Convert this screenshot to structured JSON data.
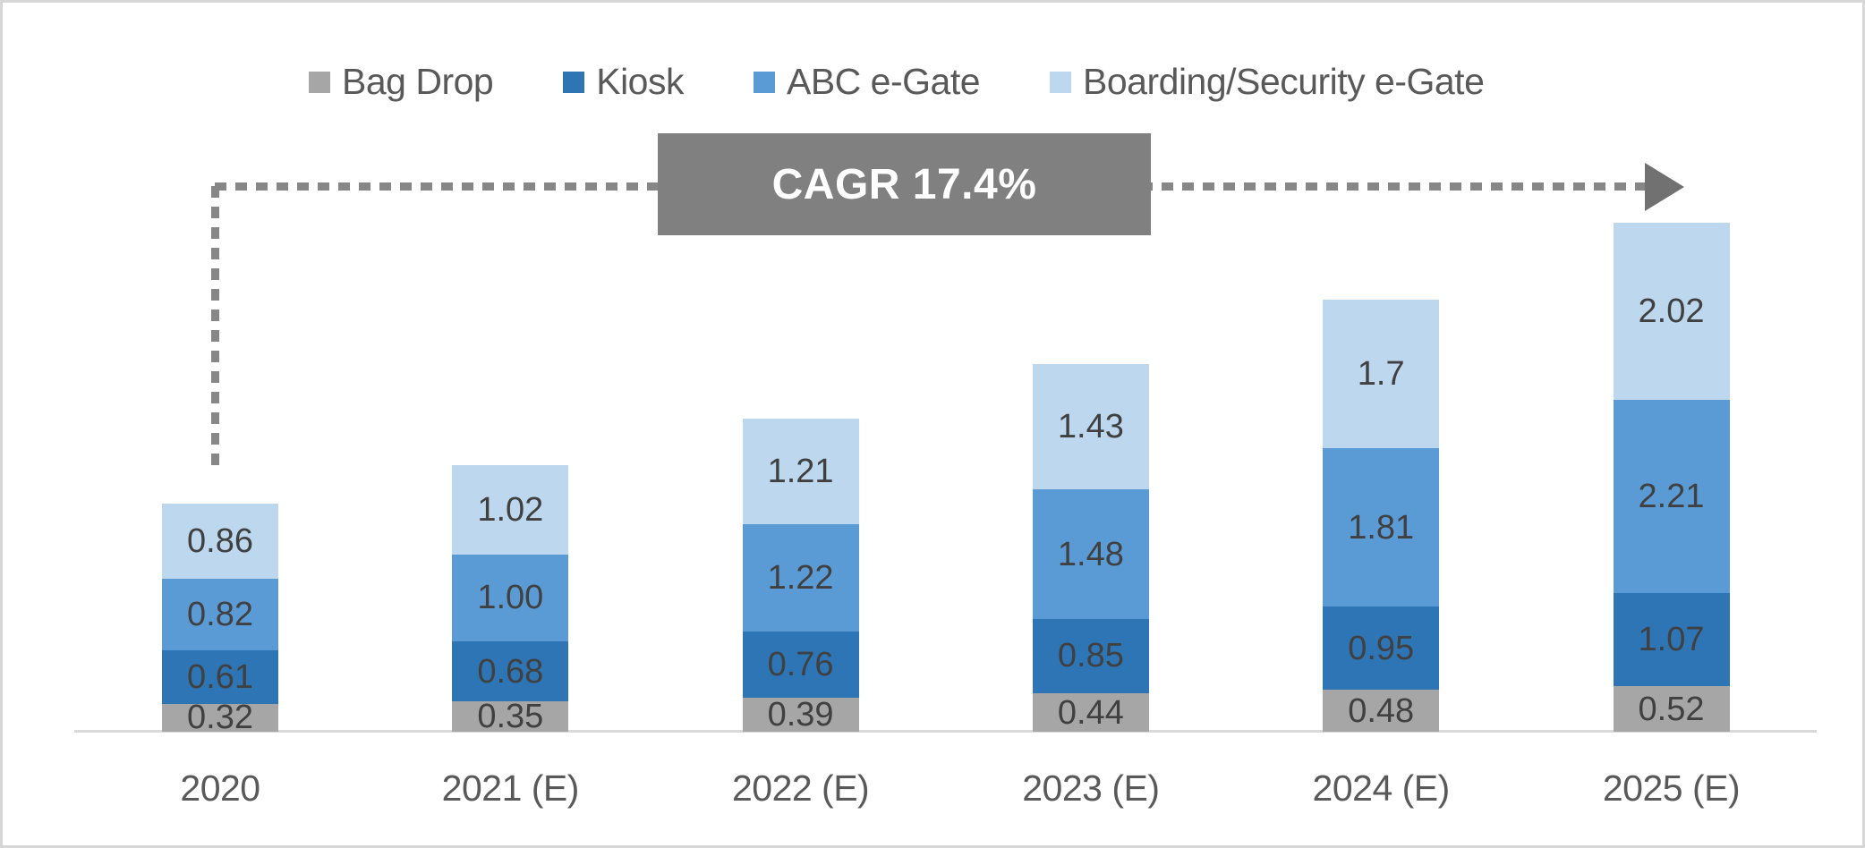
{
  "frame": {
    "border_color": "#d6d6d6",
    "background_color": "#ffffff"
  },
  "legend": {
    "items": [
      {
        "label": "Bag Drop",
        "color": "#a6a6a6"
      },
      {
        "label": "Kiosk",
        "color": "#2e75b6"
      },
      {
        "label": "ABC e-Gate",
        "color": "#5b9bd5"
      },
      {
        "label": "Boarding/Security e-Gate",
        "color": "#bdd7ee"
      }
    ],
    "text_color": "#595959"
  },
  "annotation": {
    "label": "CAGR 17.4%",
    "box_color": "#808080",
    "text_color": "#ffffff",
    "arrow_color": "#878787"
  },
  "chart_data": {
    "type": "bar",
    "stacked": true,
    "title": "",
    "xlabel": "",
    "ylabel": "",
    "ylim": [
      0,
      6
    ],
    "grid": false,
    "legend_position": "top",
    "categories": [
      "2020",
      "2021 (E)",
      "2022 (E)",
      "2023 (E)",
      "2024 (E)",
      "2025 (E)"
    ],
    "series": [
      {
        "name": "Bag Drop",
        "color": "#a6a6a6",
        "values": [
          0.32,
          0.35,
          0.39,
          0.44,
          0.48,
          0.52
        ],
        "labels": [
          "0.32",
          "0.35",
          "0.39",
          "0.44",
          "0.48",
          "0.52"
        ]
      },
      {
        "name": "Kiosk",
        "color": "#2e75b6",
        "values": [
          0.61,
          0.68,
          0.76,
          0.85,
          0.95,
          1.07
        ],
        "labels": [
          "0.61",
          "0.68",
          "0.76",
          "0.85",
          "0.95",
          "1.07"
        ]
      },
      {
        "name": "ABC e-Gate",
        "color": "#5b9bd5",
        "values": [
          0.82,
          1.0,
          1.22,
          1.48,
          1.81,
          2.21
        ],
        "labels": [
          "0.82",
          "1.00",
          "1.22",
          "1.48",
          "1.81",
          "2.21"
        ]
      },
      {
        "name": "Boarding/Security e-Gate",
        "color": "#bdd7ee",
        "values": [
          0.86,
          1.02,
          1.21,
          1.43,
          1.7,
          2.02
        ],
        "labels": [
          "0.86",
          "1.02",
          "1.21",
          "1.43",
          "1.7",
          "2.02"
        ]
      }
    ],
    "totals": [
      2.61,
      3.05,
      3.58,
      4.2,
      4.94,
      5.82
    ],
    "value_label_color": "#404040",
    "axis_label_color": "#595959",
    "baseline_color": "#d9d9d9"
  }
}
